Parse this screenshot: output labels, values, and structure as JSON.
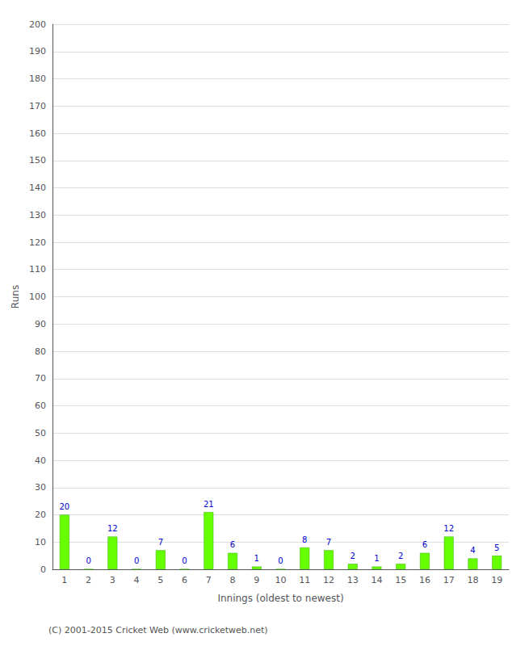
{
  "chart_data": {
    "type": "bar",
    "xlabel": "Innings (oldest to newest)",
    "ylabel": "Runs",
    "categories": [
      "1",
      "2",
      "3",
      "4",
      "5",
      "6",
      "7",
      "8",
      "9",
      "10",
      "11",
      "12",
      "13",
      "14",
      "15",
      "16",
      "17",
      "18",
      "19"
    ],
    "values": [
      20,
      0,
      12,
      0,
      7,
      0,
      21,
      6,
      1,
      0,
      8,
      7,
      2,
      1,
      2,
      6,
      12,
      4,
      5
    ],
    "color": "#66ff00",
    "ylim": [
      0,
      200
    ],
    "yticks": [
      0,
      10,
      20,
      30,
      40,
      50,
      60,
      70,
      80,
      90,
      100,
      110,
      120,
      130,
      140,
      150,
      160,
      170,
      180,
      190,
      200
    ],
    "grid": true,
    "data_labels": true,
    "annotations": [
      "(C) 2001-2015 Cricket Web (www.cricketweb.net)"
    ]
  }
}
